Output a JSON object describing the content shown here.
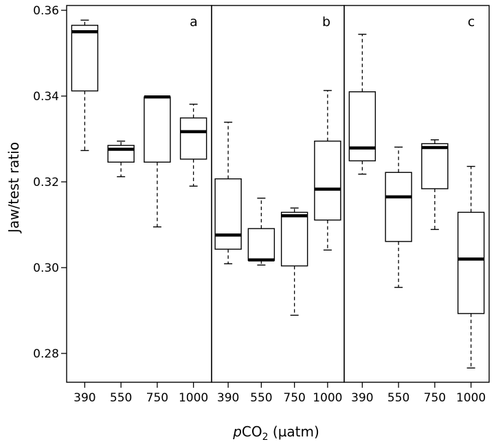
{
  "chart_data": {
    "type": "boxplot",
    "ylabel": "Jaw/test ratio",
    "xlabel_prefix": "p",
    "xlabel_main": "CO",
    "xlabel_sub": "2",
    "xlabel_suffix": " (µatm)",
    "ylim": [
      0.272,
      0.362
    ],
    "yticks": [
      0.28,
      0.3,
      0.32,
      0.34,
      0.36
    ],
    "ytick_labels": [
      "0.28",
      "0.30",
      "0.32",
      "0.34",
      "0.36"
    ],
    "categories": [
      "390",
      "550",
      "750",
      "1000"
    ],
    "panels": [
      {
        "label": "a",
        "boxes": [
          {
            "category": "390",
            "whisker_low": 0.3273,
            "q1": 0.3412,
            "median": 0.355,
            "q3": 0.3565,
            "whisker_high": 0.3577
          },
          {
            "category": "550",
            "whisker_low": 0.3212,
            "q1": 0.3246,
            "median": 0.3276,
            "q3": 0.3285,
            "whisker_high": 0.3295
          },
          {
            "category": "750",
            "whisker_low": 0.3095,
            "q1": 0.3246,
            "median": 0.3398,
            "q3": 0.3398,
            "whisker_high": 0.3398
          },
          {
            "category": "1000",
            "whisker_low": 0.319,
            "q1": 0.3253,
            "median": 0.3317,
            "q3": 0.3349,
            "whisker_high": 0.3381
          }
        ]
      },
      {
        "label": "b",
        "boxes": [
          {
            "category": "390",
            "whisker_low": 0.3009,
            "q1": 0.3043,
            "median": 0.3076,
            "q3": 0.3207,
            "whisker_high": 0.3339
          },
          {
            "category": "550",
            "whisker_low": 0.3006,
            "q1": 0.3017,
            "median": 0.3018,
            "q3": 0.3091,
            "whisker_high": 0.3162
          },
          {
            "category": "750",
            "whisker_low": 0.2889,
            "q1": 0.3004,
            "median": 0.3121,
            "q3": 0.3129,
            "whisker_high": 0.3139
          },
          {
            "category": "1000",
            "whisker_low": 0.3041,
            "q1": 0.3111,
            "median": 0.3183,
            "q3": 0.3295,
            "whisker_high": 0.3413
          }
        ]
      },
      {
        "label": "c",
        "boxes": [
          {
            "category": "390",
            "whisker_low": 0.3218,
            "q1": 0.3249,
            "median": 0.3279,
            "q3": 0.341,
            "whisker_high": 0.3544
          },
          {
            "category": "550",
            "whisker_low": 0.2954,
            "q1": 0.3061,
            "median": 0.3165,
            "q3": 0.3222,
            "whisker_high": 0.3281
          },
          {
            "category": "750",
            "whisker_low": 0.3089,
            "q1": 0.3184,
            "median": 0.328,
            "q3": 0.3289,
            "whisker_high": 0.3298
          },
          {
            "category": "1000",
            "whisker_low": 0.2766,
            "q1": 0.2893,
            "median": 0.302,
            "q3": 0.3129,
            "whisker_high": 0.3236
          }
        ]
      }
    ],
    "grid": false,
    "legend": "none"
  }
}
